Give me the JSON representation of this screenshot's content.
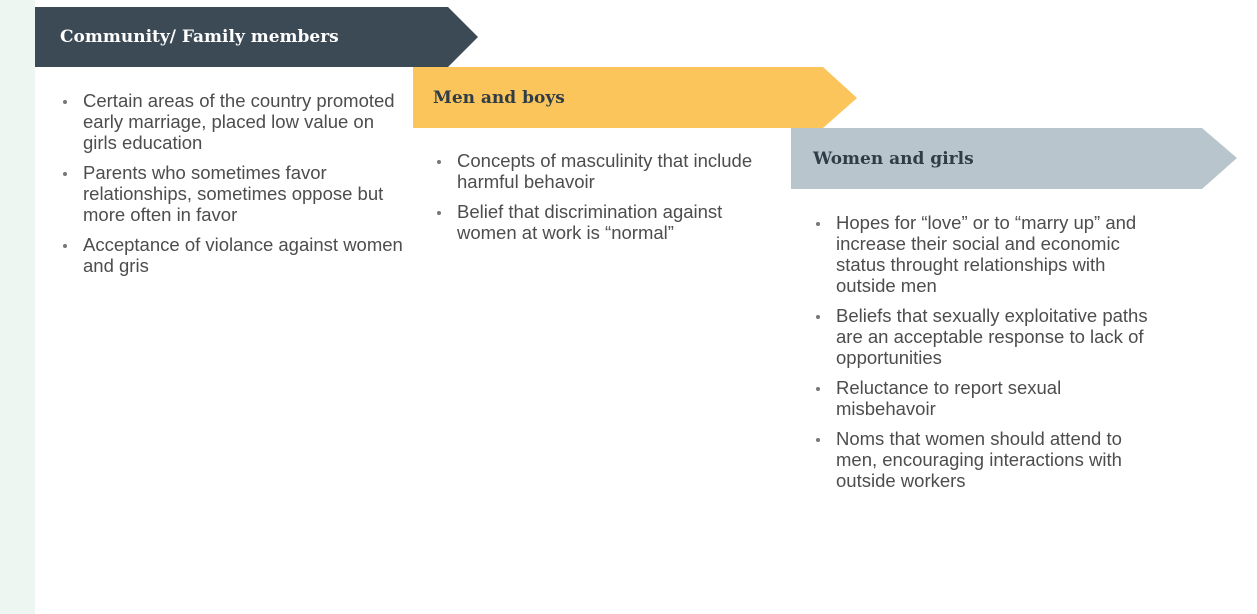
{
  "columns": [
    {
      "title": "Community/ Family members",
      "items": [
        "Certain areas of the country promoted early marriage, placed low value on girls education",
        "Parents who sometimes favor relationships, sometimes oppose but more often in favor",
        "Acceptance of violance against women and gris"
      ]
    },
    {
      "title": "Men and boys",
      "items": [
        "Concepts of masculinity that include harmful behavoir",
        "Belief that discrimination against women at work is “normal”"
      ]
    },
    {
      "title": "Women and girls",
      "items": [
        "Hopes for “love” or to “marry up” and increase their social and economic status throught relationships with outside men",
        "Beliefs that sexually exploitative paths are an acceptable response to lack of opportunities",
        "Reluctance to report sexual misbehavoir",
        "Noms that women should attend to men, encouraging interactions with outside workers"
      ]
    }
  ]
}
